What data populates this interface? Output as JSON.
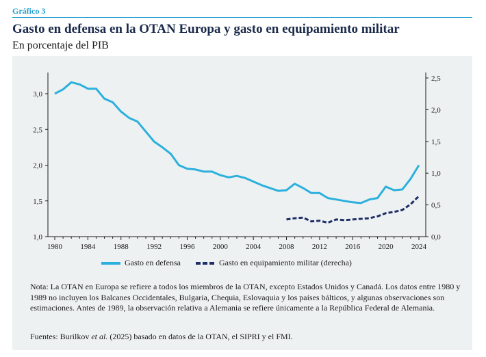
{
  "header": {
    "label": "Gráfico 3",
    "title": "Gasto en defensa en la OTAN Europa y gasto en equipamiento militar",
    "subtitle": "En porcentaje del PIB"
  },
  "colors": {
    "series_defense": "#2bb0dd",
    "series_equipment": "#1f2e66",
    "panel_bg": "#eef1f2",
    "accent": "#1d9fcf"
  },
  "footer": {
    "note": "Nota: La OTAN en Europa se refiere a todos los miembros de la OTAN, excepto Estados Unidos y Canadá. Los datos entre 1980 y 1989 no incluyen los Balcanes Occidentales, Bulgaria, Chequia, Eslovaquia y los países bálticos, y algunas observaciones son estimaciones. Antes de 1989, la observación relativa a Alemania se refiere únicamente a la República Federal de Alemania.",
    "source_prefix": "Fuentes: Burilkov ",
    "source_etal": "et al.",
    "source_suffix": " (2025) basado en datos de la OTAN, el SIPRI y el FMI."
  },
  "chart_data": {
    "type": "line",
    "x_ticks": [
      "1980",
      "1984",
      "1988",
      "1992",
      "1996",
      "2000",
      "2004",
      "2008",
      "2012",
      "2016",
      "2020",
      "2024"
    ],
    "y_left_ticks": [
      "1,0",
      "1,5",
      "2,0",
      "2,5",
      "3,0"
    ],
    "y_right_ticks": [
      "0,0",
      "0,5",
      "1,0",
      "1,5",
      "2,0",
      "2,5"
    ],
    "y_left_range": [
      1.0,
      3.2
    ],
    "y_right_range": [
      0.0,
      2.5
    ],
    "x_range": [
      1979.5,
      2025
    ],
    "legend_position": "bottom",
    "series": [
      {
        "name": "Gasto en defensa",
        "axis": "left",
        "style": "solid",
        "x": [
          1980,
          1981,
          1982,
          1983,
          1984,
          1985,
          1986,
          1987,
          1988,
          1989,
          1990,
          1991,
          1992,
          1993,
          1994,
          1995,
          1996,
          1997,
          1998,
          1999,
          2000,
          2001,
          2002,
          2003,
          2004,
          2005,
          2006,
          2007,
          2008,
          2009,
          2010,
          2011,
          2012,
          2013,
          2014,
          2015,
          2016,
          2017,
          2018,
          2019,
          2020,
          2021,
          2022,
          2023,
          2024
        ],
        "values": [
          3.0,
          3.06,
          3.16,
          3.13,
          3.07,
          3.07,
          2.93,
          2.88,
          2.75,
          2.66,
          2.61,
          2.47,
          2.33,
          2.25,
          2.16,
          2.0,
          1.95,
          1.94,
          1.91,
          1.91,
          1.86,
          1.83,
          1.85,
          1.82,
          1.77,
          1.72,
          1.68,
          1.64,
          1.65,
          1.74,
          1.68,
          1.61,
          1.61,
          1.54,
          1.52,
          1.5,
          1.48,
          1.47,
          1.52,
          1.54,
          1.7,
          1.65,
          1.66,
          1.81,
          2.0
        ]
      },
      {
        "name": "Gasto en equipamiento militar (derecha)",
        "axis": "right",
        "style": "dashed",
        "x": [
          2008,
          2009,
          2010,
          2011,
          2012,
          2013,
          2014,
          2015,
          2016,
          2017,
          2018,
          2019,
          2020,
          2021,
          2022,
          2023,
          2024
        ],
        "values": [
          0.27,
          0.29,
          0.3,
          0.24,
          0.25,
          0.22,
          0.27,
          0.26,
          0.27,
          0.28,
          0.29,
          0.32,
          0.37,
          0.39,
          0.42,
          0.51,
          0.64
        ]
      }
    ]
  }
}
